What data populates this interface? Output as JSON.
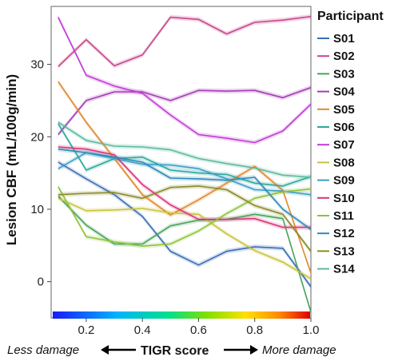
{
  "chart_data": {
    "type": "line",
    "title": "",
    "ylabel": "Lesion CBF (mL/100g/min)",
    "xlabel": "TIGR score",
    "x": [
      0.1,
      0.2,
      0.3,
      0.4,
      0.5,
      0.6,
      0.7,
      0.8,
      0.9,
      1.0
    ],
    "xlim": [
      0.075,
      1.0
    ],
    "ylim": [
      -5,
      38
    ],
    "x_ticks": [
      0.2,
      0.4,
      0.6,
      0.8,
      1.0
    ],
    "x_tick_labels": [
      "0.2",
      "0.4",
      "0.6",
      "0.8",
      "1.0"
    ],
    "y_ticks": [
      0,
      10,
      20,
      30
    ],
    "y_tick_labels": [
      "0",
      "10",
      "20",
      "30"
    ],
    "grid": false,
    "colorbar": {
      "from": "blue",
      "to": "red",
      "range": [
        0.1,
        1.0
      ]
    },
    "legend": {
      "title": "Participant",
      "position": "right"
    },
    "annotations": {
      "left": "Less damage",
      "center": "TIGR score",
      "right": "More damage"
    },
    "series": [
      {
        "name": "S01",
        "color": "#3b6fb5",
        "values": [
          16.5,
          14.2,
          12.0,
          9.0,
          4.2,
          2.3,
          4.2,
          4.8,
          4.6,
          -0.7
        ]
      },
      {
        "name": "S02",
        "color": "#c8468a",
        "values": [
          29.7,
          33.4,
          29.8,
          31.3,
          36.5,
          36.2,
          34.2,
          35.8,
          36.1,
          36.6
        ]
      },
      {
        "name": "S03",
        "color": "#48a35a",
        "values": [
          11.8,
          7.8,
          5.2,
          5.2,
          7.7,
          8.5,
          8.6,
          9.3,
          8.7,
          -4.2
        ]
      },
      {
        "name": "S04",
        "color": "#a33db5",
        "values": [
          20.3,
          25.0,
          26.2,
          26.2,
          25.0,
          26.4,
          26.3,
          26.4,
          25.4,
          26.8
        ]
      },
      {
        "name": "S05",
        "color": "#e08a2c",
        "values": [
          27.6,
          22.0,
          17.0,
          12.0,
          9.2,
          11.3,
          13.6,
          15.9,
          12.6,
          1.2
        ]
      },
      {
        "name": "S06",
        "color": "#2ea89c",
        "values": [
          21.8,
          15.4,
          17.0,
          17.2,
          15.4,
          15.0,
          14.8,
          13.6,
          13.2,
          14.5
        ]
      },
      {
        "name": "S07",
        "color": "#c23bd8",
        "values": [
          36.5,
          28.5,
          27.0,
          26.0,
          23.0,
          20.3,
          19.8,
          19.2,
          20.8,
          24.5
        ]
      },
      {
        "name": "S08",
        "color": "#c8c23e",
        "values": [
          11.5,
          9.8,
          9.9,
          10.1,
          9.5,
          9.3,
          6.6,
          4.3,
          2.7,
          0.4
        ]
      },
      {
        "name": "S09",
        "color": "#3a9ec8",
        "values": [
          15.6,
          17.8,
          17.0,
          16.2,
          16.1,
          15.6,
          14.2,
          12.7,
          12.5,
          12.0
        ]
      },
      {
        "name": "S10",
        "color": "#d9357a",
        "values": [
          18.6,
          18.3,
          17.5,
          13.4,
          10.6,
          8.6,
          8.6,
          8.7,
          7.5,
          7.5
        ]
      },
      {
        "name": "S11",
        "color": "#8cc43a",
        "values": [
          13.1,
          6.2,
          5.5,
          4.9,
          5.2,
          7.0,
          9.4,
          11.5,
          12.4,
          12.8
        ]
      },
      {
        "name": "S12",
        "color": "#2e8bb8",
        "values": [
          18.3,
          17.8,
          17.2,
          16.5,
          14.3,
          14.2,
          14.0,
          14.4,
          10.0,
          7.2
        ]
      },
      {
        "name": "S13",
        "color": "#8a8a28",
        "values": [
          12.0,
          12.2,
          12.3,
          11.5,
          13.0,
          13.2,
          12.7,
          10.5,
          9.3,
          4.2
        ]
      },
      {
        "name": "S14",
        "color": "#5db9a0",
        "values": [
          22.0,
          19.5,
          18.7,
          18.6,
          18.2,
          17.0,
          16.3,
          15.7,
          14.7,
          14.4
        ]
      }
    ]
  }
}
